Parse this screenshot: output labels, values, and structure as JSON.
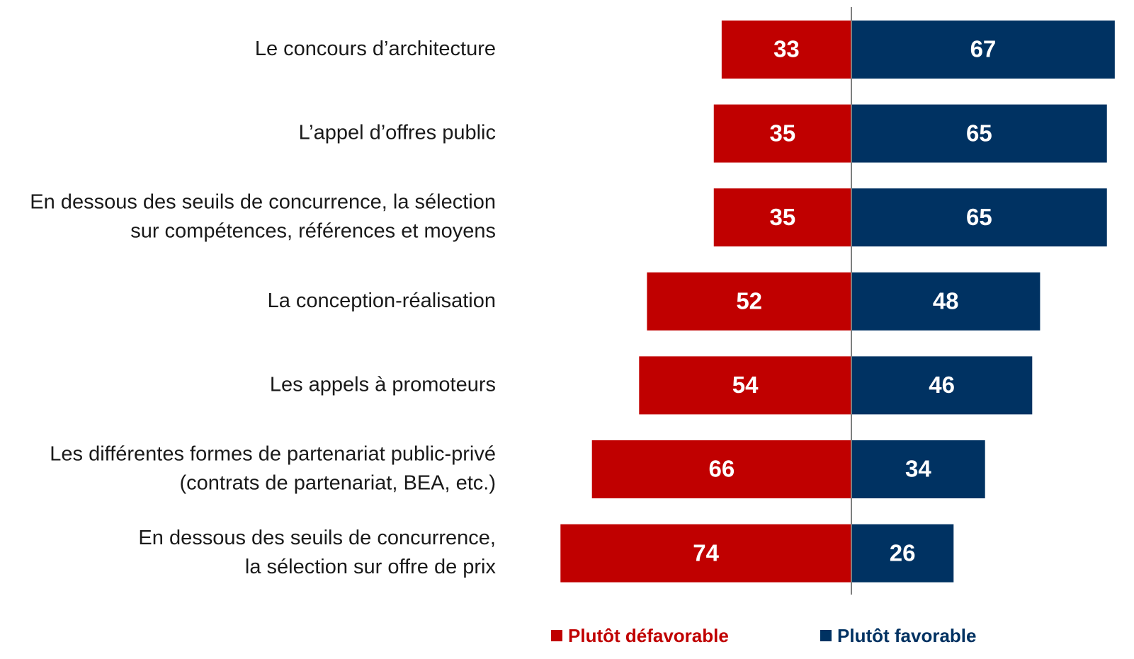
{
  "chart_data": {
    "type": "diverging-bar",
    "categories": [
      [
        "Le concours d’architecture"
      ],
      [
        "L’appel d’offres public"
      ],
      [
        "En dessous des seuils de concurrence, la sélection",
        "sur compétences, références et moyens"
      ],
      [
        "La conception-réalisation"
      ],
      [
        "Les appels à promoteurs"
      ],
      [
        "Les différentes formes de partenariat public-privé",
        "(contrats de partenariat, BEA, etc.)"
      ],
      [
        "En dessous des seuils de concurrence,",
        "la sélection sur offre de prix"
      ]
    ],
    "series": [
      {
        "name": "Plutôt défavorable",
        "color": "#c00000",
        "values": [
          33,
          35,
          35,
          52,
          54,
          66,
          74
        ]
      },
      {
        "name": "Plutôt favorable",
        "color": "#003262",
        "values": [
          67,
          65,
          65,
          48,
          46,
          34,
          26
        ]
      }
    ]
  }
}
